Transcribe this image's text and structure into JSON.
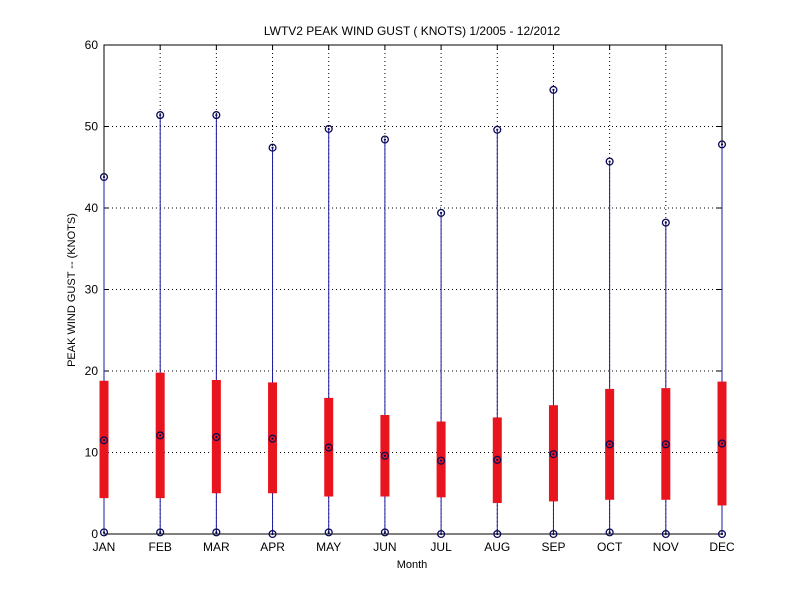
{
  "chart_data": {
    "type": "box",
    "title": "LWTV2  PEAK WIND GUST ( KNOTS) 1/2005 - 12/2012",
    "xlabel": "Month",
    "ylabel": "PEAK WIND GUST -- (KNOTS)",
    "ylim": [
      0,
      60
    ],
    "yticks": [
      0,
      10,
      20,
      30,
      40,
      50,
      60
    ],
    "grid": true,
    "categories": [
      "JAN",
      "FEB",
      "MAR",
      "APR",
      "MAY",
      "JUN",
      "JUL",
      "AUG",
      "SEP",
      "OCT",
      "NOV",
      "DEC"
    ],
    "series": [
      {
        "min": [
          0.2,
          0.2,
          0.2,
          0.0,
          0.2,
          0.2,
          0.0,
          0.0,
          0.0,
          0.2,
          0.0,
          0.0
        ],
        "q1": [
          4.4,
          4.4,
          5.0,
          5.0,
          4.6,
          4.6,
          4.5,
          3.8,
          4.0,
          4.2,
          4.2,
          3.5
        ],
        "median": [
          11.5,
          12.1,
          11.9,
          11.7,
          10.6,
          9.6,
          9.0,
          9.1,
          9.8,
          11.0,
          11.0,
          11.1
        ],
        "q3": [
          18.8,
          19.8,
          18.9,
          18.6,
          16.7,
          14.6,
          13.8,
          14.3,
          15.8,
          17.8,
          17.9,
          18.7
        ],
        "max": [
          43.8,
          51.4,
          51.4,
          47.4,
          49.7,
          48.4,
          39.4,
          49.6,
          54.5,
          45.7,
          38.2,
          47.8
        ]
      }
    ],
    "colors": {
      "whisker": "#1a1aa0",
      "box": "#e8141e",
      "marker": "#0a0a55",
      "grid": "#000000",
      "axis": "#000000"
    }
  }
}
